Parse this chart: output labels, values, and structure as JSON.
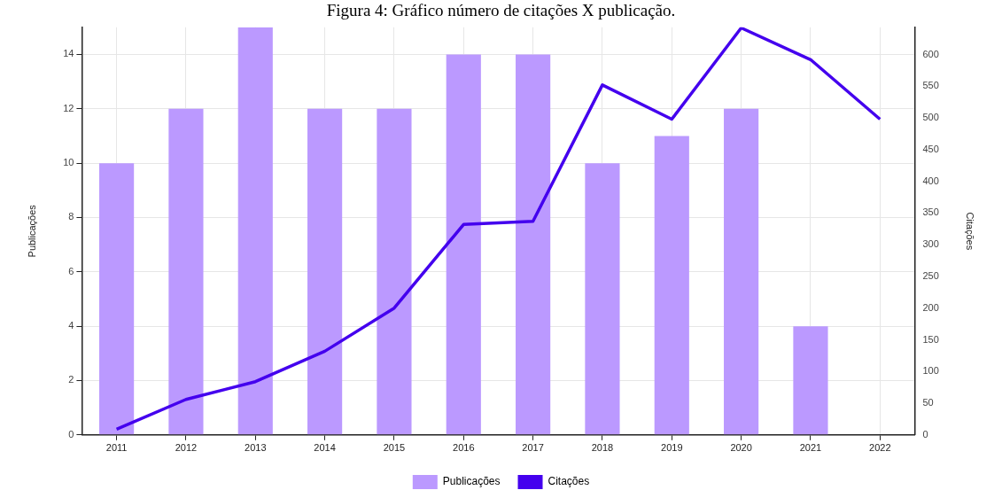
{
  "chart_data": {
    "type": "bar",
    "title": "Figura 4: Gráfico número de citações X publicação.",
    "categories": [
      "2011",
      "2012",
      "2013",
      "2014",
      "2015",
      "2016",
      "2017",
      "2018",
      "2019",
      "2020",
      "2021",
      "2022"
    ],
    "series": [
      {
        "name": "Publicações",
        "color": "#bb99ff",
        "values": [
          10,
          12,
          15,
          12,
          12,
          14,
          14,
          10,
          11,
          12,
          4,
          0
        ]
      },
      {
        "name": "Citações",
        "type": "line",
        "axis": "y2",
        "color": "#4400ee",
        "values": [
          9,
          56,
          84,
          132,
          200,
          332,
          337,
          552,
          498,
          642,
          592,
          498
        ]
      }
    ],
    "ylabel": "Publicações",
    "y2label": "Citações",
    "ylim": [
      0,
      15
    ],
    "yticks": [
      0,
      2,
      4,
      6,
      8,
      10,
      12,
      14
    ],
    "y2lim": [
      0,
      643
    ],
    "y2ticks": [
      0,
      50,
      100,
      150,
      200,
      250,
      300,
      350,
      400,
      450,
      500,
      550,
      600
    ],
    "grid": true,
    "legend": "bottom",
    "marker": "none"
  }
}
